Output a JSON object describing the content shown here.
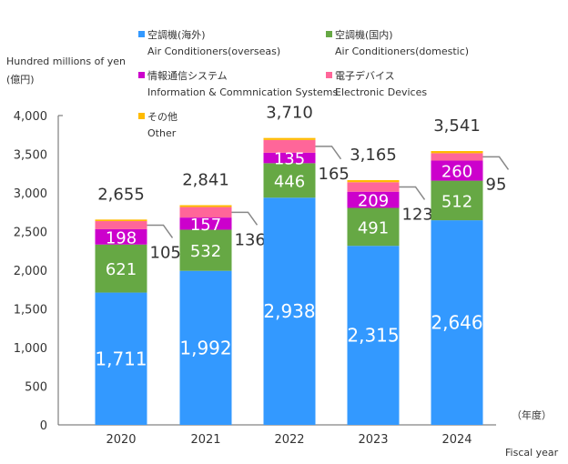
{
  "chart_data": {
    "type": "bar",
    "stacked": true,
    "ylabel": "Hundred millions of yen",
    "ylabel_ja": "(億円)",
    "xlabel": "Fiscal year",
    "xlabel_ja": "（年度）",
    "ylim": [
      0,
      4000
    ],
    "yticks": [
      "0",
      "500",
      "1,000",
      "1,500",
      "2,000",
      "2,500",
      "3,000",
      "3,500",
      "4,000"
    ],
    "categories": [
      "2020",
      "2021",
      "2022",
      "2023",
      "2024"
    ],
    "totals": [
      "2,655",
      "2,841",
      "3,710",
      "3,165",
      "3,541"
    ],
    "series": [
      {
        "name": "Air Conditioners(overseas)",
        "name_ja": "空調機(海外)",
        "color": "#3399ff",
        "values": [
          1711,
          1992,
          2938,
          2315,
          2646
        ]
      },
      {
        "name": "Air Conditioners(domestic)",
        "name_ja": "空調機(国内)",
        "color": "#66a844",
        "values": [
          621,
          532,
          446,
          491,
          512
        ]
      },
      {
        "name": "Information & Commnication Systems",
        "name_ja": "情報通信システム",
        "color": "#cc00cc",
        "values": [
          198,
          157,
          135,
          209,
          260
        ]
      },
      {
        "name": "Electronic Devices",
        "name_ja": "電子デバイス",
        "color": "#ff6699",
        "values": [
          105,
          136,
          165,
          123,
          95
        ]
      },
      {
        "name": "Other",
        "name_ja": "その他",
        "color": "#ffbb00",
        "values": [
          20,
          24,
          26,
          27,
          28
        ]
      }
    ],
    "grid": false,
    "legend": "top"
  }
}
